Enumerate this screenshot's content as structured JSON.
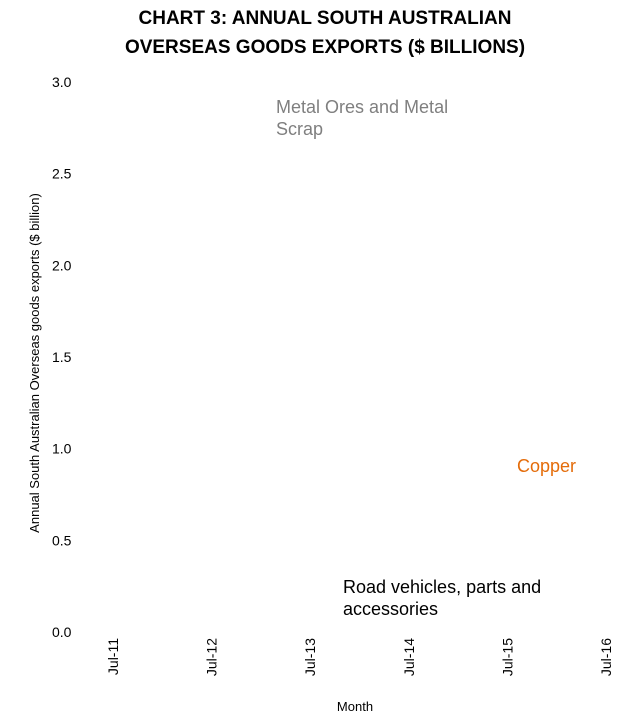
{
  "chart_data": {
    "type": "line",
    "title_lines": [
      "CHART 3: ANNUAL SOUTH AUSTRALIAN",
      "OVERSEAS GOODS EXPORTS ($ BILLIONS)"
    ],
    "xlabel": "Month",
    "ylabel": "Annual South Australian Overseas  goods exports ($ billion)",
    "ylim": [
      0,
      3
    ],
    "y_ticks": [
      0.0,
      0.5,
      1.0,
      1.5,
      2.0,
      2.5,
      3.0
    ],
    "y_tick_labels": [
      "0.0",
      "0.5",
      "1.0",
      "1.5",
      "2.0",
      "2.5",
      "3.0"
    ],
    "x_ticks": [
      "Jul-11",
      "Jul-12",
      "Jul-13",
      "Jul-14",
      "Jul-15",
      "Jul-16"
    ],
    "grid": false,
    "series": [],
    "annotations": [
      {
        "lines": [
          "Metal Ores and Metal",
          "Scrap"
        ],
        "color": "#7f7f7f"
      },
      {
        "lines": [
          "Copper"
        ],
        "color": "#e46c0a"
      },
      {
        "lines": [
          "Road vehicles, parts and",
          "accessories"
        ],
        "color": "#000000"
      }
    ]
  }
}
